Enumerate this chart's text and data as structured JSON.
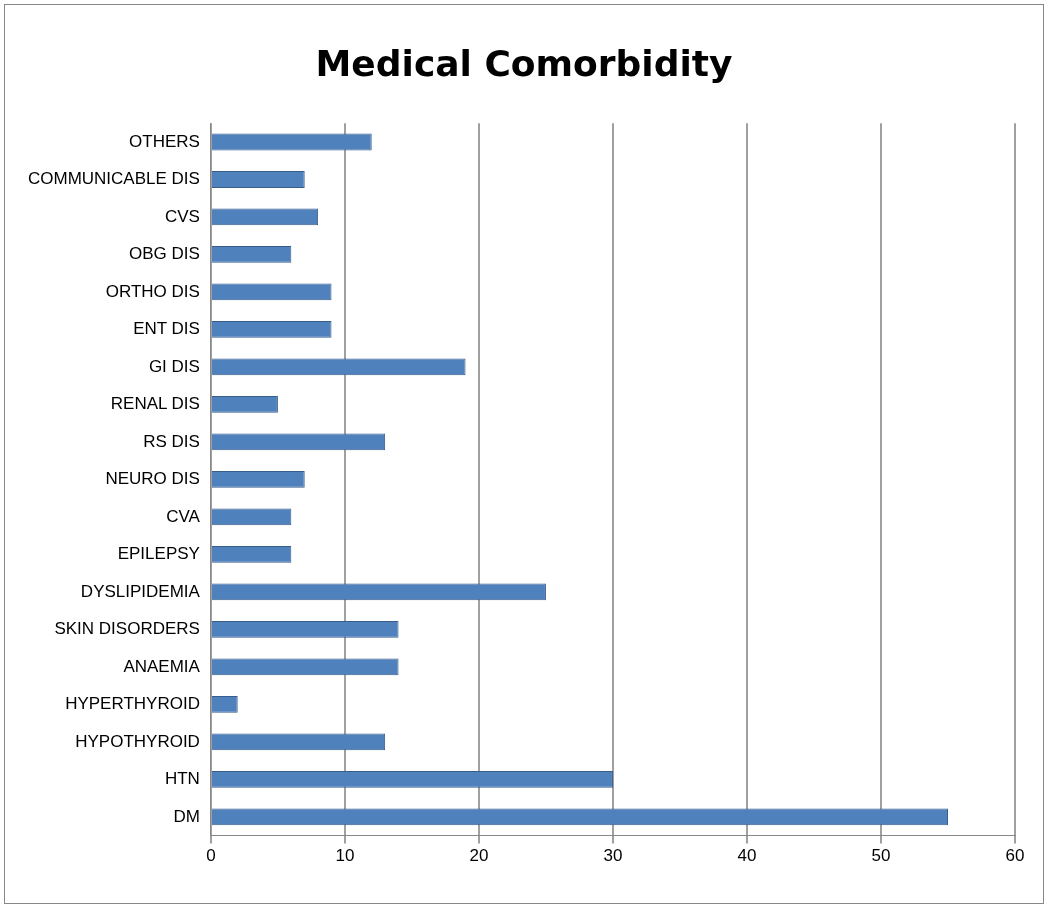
{
  "chart_data": {
    "type": "bar",
    "orientation": "horizontal",
    "title": "Medical Comorbidity",
    "categories": [
      "OTHERS",
      "COMMUNICABLE DIS",
      "CVS",
      "OBG DIS",
      "ORTHO DIS",
      "ENT DIS",
      "GI DIS",
      "RENAL DIS",
      "RS DIS",
      "NEURO DIS",
      "CVA",
      "EPILEPSY",
      "DYSLIPIDEMIA",
      "SKIN DISORDERS",
      "ANAEMIA",
      "HYPERTHYROID",
      "HYPOTHYROID",
      "HTN",
      "DM"
    ],
    "values": [
      12,
      7,
      8,
      6,
      9,
      9,
      19,
      5,
      13,
      7,
      6,
      6,
      25,
      14,
      14,
      2,
      13,
      30,
      55
    ],
    "color": "#4f81bd",
    "xlim": [
      0,
      60
    ],
    "xticks": [
      0,
      10,
      20,
      30,
      40,
      50,
      60
    ],
    "grid": "x",
    "legend": false
  }
}
